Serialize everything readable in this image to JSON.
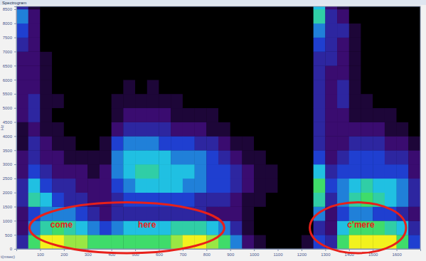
{
  "chart_data": {
    "type": "heatmap",
    "window_title": "Spectrogram",
    "xlabel": "t(msec)",
    "ylabel": "Hz",
    "xlim": [
      0,
      1700
    ],
    "ylim": [
      0,
      8600
    ],
    "xticks": [
      100,
      200,
      300,
      400,
      500,
      600,
      700,
      800,
      900,
      1000,
      1100,
      1200,
      1300,
      1400,
      1500,
      1600
    ],
    "yticks": [
      0,
      500,
      1000,
      1500,
      2000,
      2500,
      3000,
      3500,
      4000,
      4500,
      5000,
      5500,
      6000,
      6500,
      7000,
      7500,
      8000,
      8500
    ],
    "zlim": [
      0,
      10
    ],
    "x_bins": [
      0,
      50,
      100,
      150,
      200,
      250,
      300,
      350,
      400,
      450,
      500,
      550,
      600,
      650,
      700,
      750,
      800,
      850,
      900,
      950,
      1000,
      1050,
      1100,
      1150,
      1200,
      1250,
      1300,
      1350,
      1400,
      1450,
      1500,
      1550,
      1600,
      1650,
      1700
    ],
    "y_bins": [
      0,
      500,
      1000,
      1500,
      2000,
      2500,
      3000,
      3500,
      4000,
      4500,
      5000,
      5500,
      6000,
      6500,
      7000,
      7500,
      8000,
      8500,
      9000
    ],
    "cells": [
      [
        3,
        2,
        2,
        3,
        3,
        2,
        2,
        1,
        1,
        2,
        2,
        2,
        2,
        2,
        3,
        4,
        5,
        3
      ],
      [
        8,
        5,
        4,
        7,
        6,
        4,
        3,
        3,
        2,
        3,
        3,
        2,
        2,
        2,
        2,
        2,
        2,
        1
      ],
      [
        10,
        7,
        5,
        6,
        4,
        3,
        2,
        2,
        1,
        1,
        1,
        1,
        1,
        1,
        0,
        0,
        0,
        0
      ],
      [
        10,
        8,
        5,
        4,
        3,
        2,
        2,
        1,
        1,
        0,
        1,
        0,
        0,
        0,
        0,
        0,
        0,
        0
      ],
      [
        9,
        7,
        5,
        3,
        3,
        2,
        1,
        1,
        0,
        0,
        0,
        0,
        0,
        0,
        0,
        0,
        0,
        0
      ],
      [
        9,
        6,
        4,
        3,
        2,
        2,
        1,
        0,
        0,
        0,
        0,
        0,
        0,
        0,
        0,
        0,
        0,
        0
      ],
      [
        8,
        5,
        3,
        2,
        2,
        1,
        1,
        0,
        0,
        0,
        0,
        0,
        0,
        0,
        0,
        0,
        0,
        0
      ],
      [
        8,
        4,
        2,
        2,
        2,
        2,
        1,
        1,
        0,
        0,
        0,
        0,
        0,
        0,
        0,
        0,
        0,
        0
      ],
      [
        8,
        5,
        3,
        3,
        4,
        5,
        5,
        4,
        2,
        1,
        1,
        0,
        0,
        0,
        0,
        0,
        0,
        0
      ],
      [
        8,
        6,
        3,
        4,
        5,
        6,
        6,
        5,
        3,
        2,
        1,
        1,
        0,
        0,
        0,
        0,
        0,
        0
      ],
      [
        8,
        6,
        3,
        4,
        6,
        7,
        6,
        5,
        3,
        2,
        1,
        0,
        0,
        0,
        0,
        0,
        0,
        0
      ],
      [
        8,
        6,
        3,
        4,
        6,
        7,
        6,
        5,
        3,
        2,
        1,
        1,
        0,
        0,
        0,
        0,
        0,
        0
      ],
      [
        8,
        6,
        3,
        4,
        6,
        6,
        6,
        4,
        3,
        2,
        1,
        0,
        0,
        0,
        0,
        0,
        0,
        0
      ],
      [
        9,
        7,
        3,
        4,
        6,
        6,
        5,
        4,
        2,
        1,
        1,
        0,
        0,
        0,
        0,
        0,
        0,
        0
      ],
      [
        10,
        7,
        3,
        4,
        5,
        6,
        5,
        4,
        2,
        1,
        0,
        0,
        0,
        0,
        0,
        0,
        0,
        0
      ],
      [
        10,
        7,
        3,
        3,
        5,
        5,
        5,
        3,
        2,
        1,
        0,
        0,
        0,
        0,
        0,
        0,
        0,
        0
      ],
      [
        9,
        6,
        2,
        3,
        4,
        4,
        4,
        3,
        1,
        1,
        0,
        0,
        0,
        0,
        0,
        0,
        0,
        0
      ],
      [
        8,
        5,
        2,
        3,
        4,
        4,
        3,
        2,
        1,
        0,
        0,
        0,
        0,
        0,
        0,
        0,
        0,
        0
      ],
      [
        5,
        3,
        2,
        2,
        3,
        3,
        2,
        1,
        0,
        0,
        0,
        0,
        0,
        0,
        0,
        0,
        0,
        0
      ],
      [
        2,
        1,
        1,
        1,
        2,
        2,
        1,
        1,
        0,
        0,
        0,
        0,
        0,
        0,
        0,
        0,
        0,
        0
      ],
      [
        1,
        0,
        0,
        1,
        1,
        1,
        1,
        0,
        0,
        0,
        0,
        0,
        0,
        0,
        0,
        0,
        0,
        0
      ],
      [
        0,
        0,
        0,
        0,
        1,
        1,
        0,
        0,
        0,
        0,
        0,
        0,
        0,
        0,
        0,
        0,
        0,
        0
      ],
      [
        0,
        0,
        0,
        0,
        0,
        0,
        0,
        0,
        0,
        0,
        0,
        0,
        0,
        0,
        0,
        0,
        0,
        0
      ],
      [
        0,
        0,
        0,
        0,
        0,
        0,
        0,
        0,
        0,
        0,
        0,
        0,
        0,
        0,
        0,
        0,
        0,
        0
      ],
      [
        1,
        0,
        0,
        0,
        0,
        0,
        0,
        0,
        0,
        0,
        0,
        0,
        0,
        0,
        0,
        0,
        0,
        0
      ],
      [
        4,
        3,
        5,
        7,
        8,
        6,
        4,
        3,
        3,
        3,
        3,
        3,
        3,
        3,
        4,
        5,
        7,
        6
      ],
      [
        3,
        2,
        2,
        3,
        4,
        3,
        2,
        2,
        2,
        2,
        2,
        2,
        2,
        3,
        3,
        3,
        3,
        2
      ],
      [
        8,
        6,
        4,
        5,
        5,
        4,
        3,
        2,
        2,
        2,
        3,
        3,
        2,
        2,
        2,
        3,
        2,
        1
      ],
      [
        10,
        8,
        5,
        7,
        6,
        4,
        4,
        3,
        2,
        1,
        1,
        1,
        1,
        1,
        1,
        1,
        0,
        0
      ],
      [
        10,
        8,
        5,
        8,
        7,
        4,
        4,
        3,
        2,
        1,
        1,
        0,
        0,
        0,
        0,
        0,
        0,
        0
      ],
      [
        10,
        8,
        4,
        7,
        6,
        4,
        4,
        3,
        2,
        1,
        0,
        0,
        0,
        0,
        0,
        0,
        0,
        0
      ],
      [
        10,
        7,
        4,
        6,
        6,
        4,
        3,
        2,
        1,
        1,
        0,
        0,
        0,
        0,
        0,
        0,
        0,
        0
      ],
      [
        8,
        6,
        3,
        5,
        5,
        4,
        3,
        2,
        1,
        0,
        0,
        0,
        0,
        0,
        0,
        0,
        0,
        0
      ],
      [
        4,
        3,
        2,
        3,
        3,
        2,
        2,
        1,
        0,
        0,
        0,
        0,
        0,
        0,
        0,
        0,
        0,
        0
      ]
    ],
    "annotations": [
      {
        "text": "come",
        "x": 190,
        "y": 750
      },
      {
        "text": "here",
        "x": 550,
        "y": 750
      },
      {
        "text": "c'mere",
        "x": 1450,
        "y": 750
      }
    ],
    "highlights": [
      {
        "x": [
          55,
          875
        ],
        "y": [
          -150,
          1650
        ]
      },
      {
        "x": [
          1235,
          1640
        ],
        "y": [
          -150,
          1650
        ]
      }
    ]
  }
}
